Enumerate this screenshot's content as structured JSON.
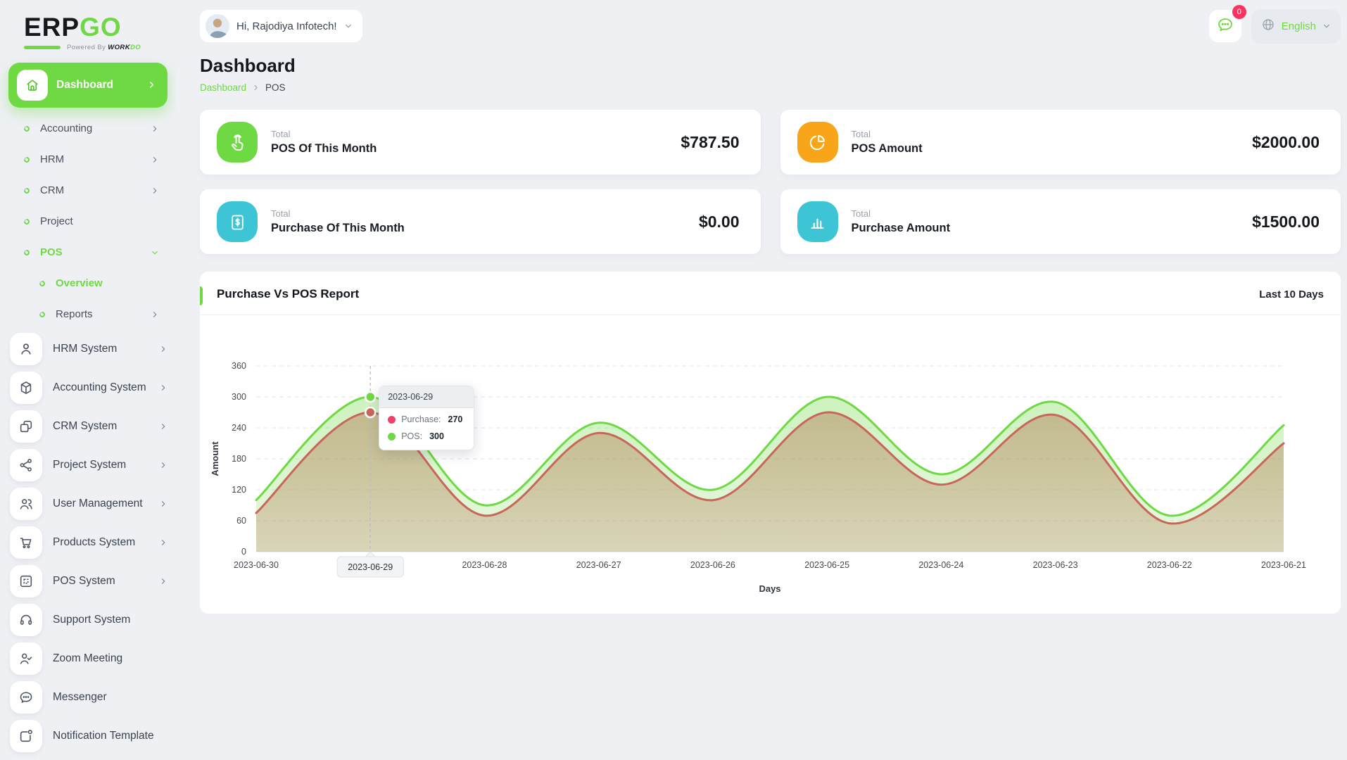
{
  "logo": {
    "erp": "ERP",
    "go": "GO",
    "powered_prefix": "Powered By",
    "brand_dark": "WORK",
    "brand_green": "DO"
  },
  "header": {
    "greeting": "Hi, Rajodiya Infotech!",
    "notification_badge": "0",
    "language": "English"
  },
  "page": {
    "title": "Dashboard",
    "breadcrumb_home": "Dashboard",
    "breadcrumb_current": "POS"
  },
  "sidebar": {
    "items": [
      {
        "label": "Dashboard",
        "icon": "home-icon",
        "style": "pill",
        "chevron": "right",
        "active": true
      },
      {
        "label": "Accounting",
        "chevron": "right",
        "active": false
      },
      {
        "label": "HRM",
        "chevron": "right",
        "active": false
      },
      {
        "label": "CRM",
        "chevron": "right",
        "active": false
      },
      {
        "label": "Project",
        "chevron": null,
        "active": false
      },
      {
        "label": "POS",
        "chevron": "down",
        "active": true,
        "children": [
          {
            "label": "Overview",
            "chevron": null,
            "active": true
          },
          {
            "label": "Reports",
            "chevron": "right",
            "active": false
          }
        ]
      }
    ],
    "systems": [
      {
        "label": "HRM System",
        "icon": "person-icon",
        "chevron": true
      },
      {
        "label": "Accounting System",
        "icon": "cube-icon",
        "chevron": true
      },
      {
        "label": "CRM System",
        "icon": "windows-icon",
        "chevron": true
      },
      {
        "label": "Project System",
        "icon": "share-icon",
        "chevron": true
      },
      {
        "label": "User Management",
        "icon": "users-icon",
        "chevron": true
      },
      {
        "label": "Products System",
        "icon": "cart-icon",
        "chevron": true
      },
      {
        "label": "POS System",
        "icon": "pos-window-icon",
        "chevron": true
      },
      {
        "label": "Support System",
        "icon": "headset-icon",
        "chevron": false
      },
      {
        "label": "Zoom Meeting",
        "icon": "user-check-icon",
        "chevron": false
      },
      {
        "label": "Messenger",
        "icon": "chat-icon",
        "chevron": false
      },
      {
        "label": "Notification Template",
        "icon": "notification-icon",
        "chevron": false
      }
    ]
  },
  "cards": [
    {
      "kicker": "Total",
      "label": "POS Of This Month",
      "value": "$787.50",
      "icon": "tap-icon",
      "color": "#6fd943"
    },
    {
      "kicker": "Total",
      "label": "POS Amount",
      "value": "$2000.00",
      "icon": "pie-chart-icon",
      "color": "#f9a51a"
    },
    {
      "kicker": "Total",
      "label": "Purchase Of This Month",
      "value": "$0.00",
      "icon": "invoice-icon",
      "color": "#3dc5d6"
    },
    {
      "kicker": "Total",
      "label": "Purchase Amount",
      "value": "$1500.00",
      "icon": "bar-chart-icon",
      "color": "#3dc5d6"
    }
  ],
  "report": {
    "title": "Purchase Vs POS Report",
    "range": "Last 10 Days"
  },
  "chart_data": {
    "type": "area",
    "title": "Purchase Vs POS Report",
    "x": [
      "2023-06-30",
      "2023-06-29",
      "2023-06-28",
      "2023-06-27",
      "2023-06-26",
      "2023-06-25",
      "2023-06-24",
      "2023-06-23",
      "2023-06-22",
      "2023-06-21"
    ],
    "series": [
      {
        "name": "Purchase",
        "color": "#c9655b",
        "area_top": "rgba(182,130,91,0.50)",
        "area_bottom": "rgba(182,130,91,0.30)",
        "values": [
          75,
          270,
          70,
          230,
          100,
          270,
          130,
          265,
          55,
          210
        ]
      },
      {
        "name": "POS",
        "color": "#6fd943",
        "area_top": "rgba(111,217,67,0.34)",
        "area_bottom": "rgba(111,217,67,0.16)",
        "values": [
          100,
          300,
          90,
          250,
          120,
          300,
          150,
          290,
          70,
          245
        ]
      }
    ],
    "xlabel": "Days",
    "ylabel": "Amount",
    "ylim": [
      0,
      360
    ],
    "ytick_step": 60,
    "grid": "dashed-horizontal",
    "legend": "none",
    "tooltip": {
      "index": 1,
      "title": "2023-06-29",
      "rows": [
        {
          "series": "Purchase",
          "label": "Purchase:",
          "value": "270"
        },
        {
          "series": "POS",
          "label": "POS:",
          "value": "300"
        }
      ]
    }
  }
}
